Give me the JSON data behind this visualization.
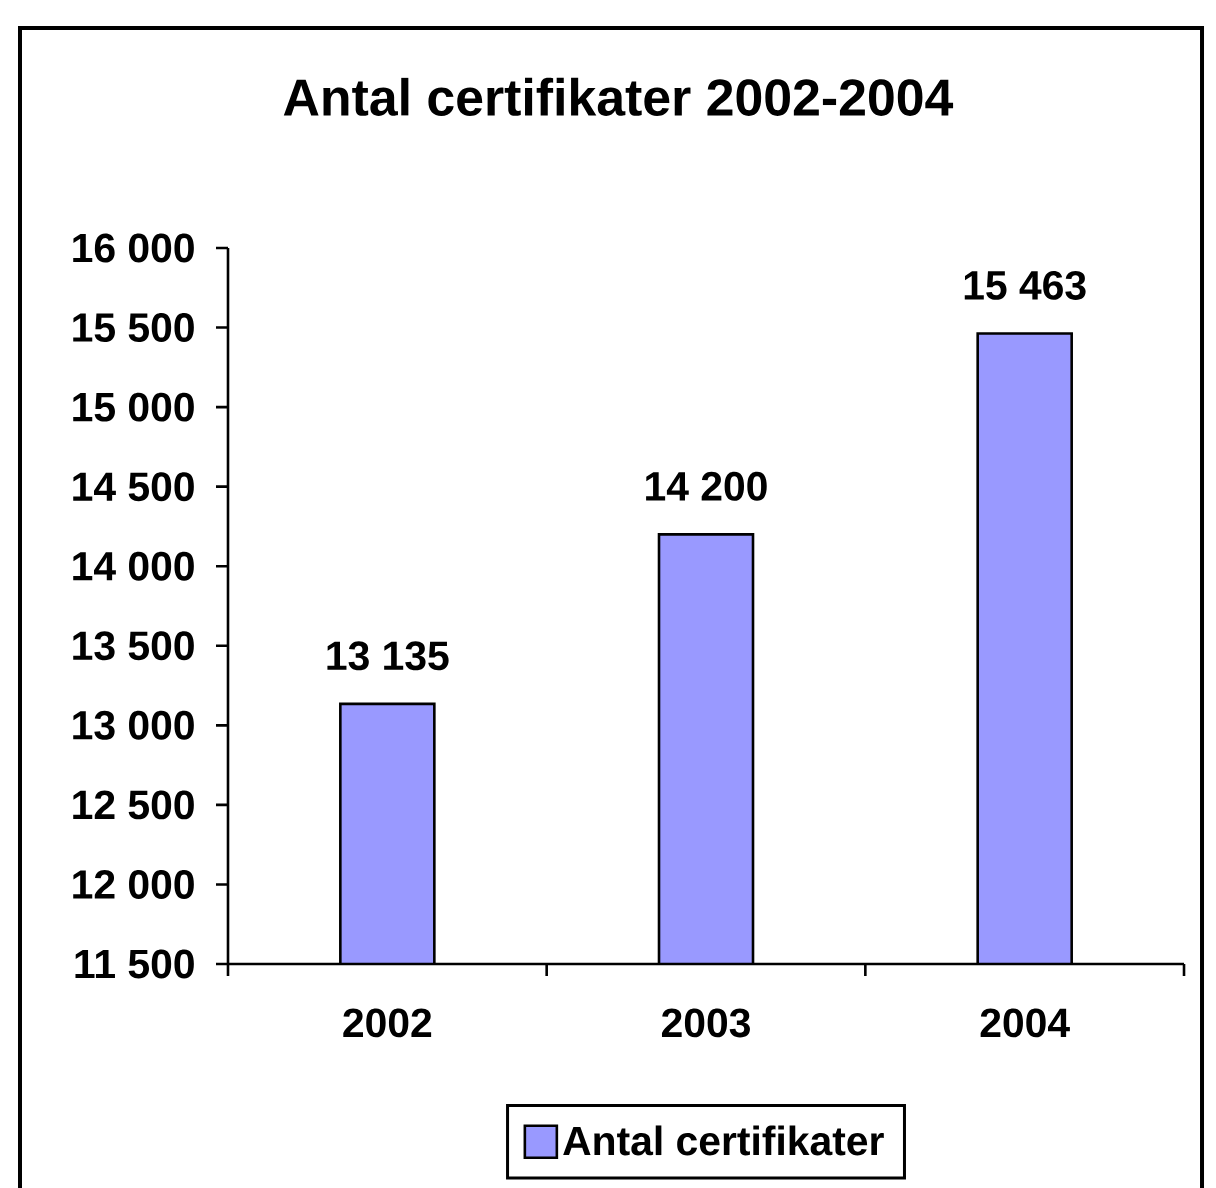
{
  "chart_data": {
    "type": "bar",
    "title": "Antal certifikater  2002-2004",
    "categories": [
      "2002",
      "2003",
      "2004"
    ],
    "series": [
      {
        "name": "Antal certifikater",
        "color": "#9999ff",
        "values": [
          13135,
          14200,
          15463
        ],
        "value_labels": [
          "13 135",
          "14 200",
          "15 463"
        ]
      }
    ],
    "ylim": [
      11500,
      16000
    ],
    "yticks": [
      {
        "value": 11500,
        "label": "11 500"
      },
      {
        "value": 12000,
        "label": "12 000"
      },
      {
        "value": 12500,
        "label": "12 500"
      },
      {
        "value": 13000,
        "label": "13 000"
      },
      {
        "value": 13500,
        "label": "13 500"
      },
      {
        "value": 14000,
        "label": "14 000"
      },
      {
        "value": 14500,
        "label": "14 500"
      },
      {
        "value": 15000,
        "label": "15 000"
      },
      {
        "value": 15500,
        "label": "15 500"
      },
      {
        "value": 16000,
        "label": "16 000"
      }
    ],
    "legend": "bottom"
  }
}
